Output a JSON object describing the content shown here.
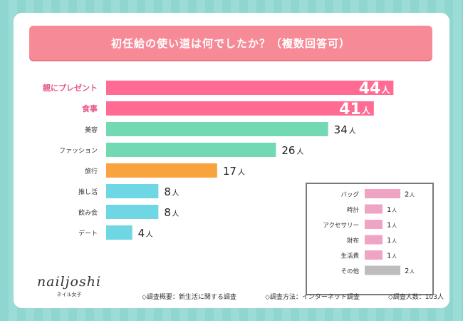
{
  "chart_data": {
    "type": "bar",
    "title": "初任給の使い道は何でしたか？（複数回答可）",
    "unit": "人",
    "categories": [
      "親にプレゼント",
      "食事",
      "美容",
      "ファッション",
      "旅行",
      "推し活",
      "飲み会",
      "デート"
    ],
    "values": [
      44,
      41,
      34,
      26,
      17,
      8,
      8,
      4
    ],
    "highlight_labels": [
      true,
      true,
      false,
      false,
      false,
      false,
      false,
      false
    ],
    "colors": [
      "#ff6b93",
      "#ff6b93",
      "#72d9b3",
      "#72d9b3",
      "#f9a33e",
      "#6fd6e3",
      "#6fd6e3",
      "#6fd6e3"
    ],
    "xlim": [
      0,
      48
    ],
    "other": {
      "categories": [
        "バッグ",
        "時計",
        "アクセサリー",
        "財布",
        "生活費",
        "その他"
      ],
      "values": [
        2,
        1,
        1,
        1,
        1,
        2
      ],
      "colors": [
        "#f0a4c4",
        "#f0a4c4",
        "#f0a4c4",
        "#f0a4c4",
        "#f0a4c4",
        "#bdbdbd"
      ],
      "xlim": [
        0,
        2
      ]
    }
  },
  "colors": {
    "title_bg": "#f78a97",
    "highlight_text": "#e85a86",
    "background": "#9cdcd6"
  },
  "logo": {
    "main": "nailjoshi",
    "sub": "ネイル女子"
  },
  "footer": {
    "outline": "◇調査概要：新生活に関する調査",
    "method": "◇調査方法：インターネット調査",
    "count": "◇調査人数：103人"
  }
}
